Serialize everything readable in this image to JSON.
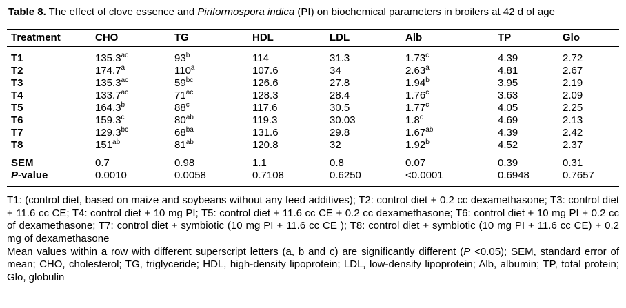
{
  "title": {
    "label": "Table 8.",
    "text_before_italic": " The effect of clove essence and ",
    "italic": "Piriformospora indica",
    "text_after_italic": " (PI) on biochemical parameters in broilers at 42 d of age"
  },
  "table": {
    "columns": [
      "Treatment",
      "CHO",
      "TG",
      "HDL",
      "LDL",
      "Alb",
      "TP",
      "Glo"
    ],
    "rows": [
      {
        "label": "T1",
        "cells": [
          "135.3^ac",
          "93^b",
          "114",
          "31.3",
          "1.73^c",
          "4.39",
          "2.72"
        ]
      },
      {
        "label": "T2",
        "cells": [
          "174.7^a",
          "110^a",
          "107.6",
          "34",
          "2.63^a",
          "4.81",
          "2.67"
        ]
      },
      {
        "label": "T3",
        "cells": [
          "135.3^ac",
          "59^bc",
          "126.6",
          "27.8",
          "1.94^b",
          "3.95",
          "2.19"
        ]
      },
      {
        "label": "T4",
        "cells": [
          "133.7^ac",
          "71^ac",
          "128.3",
          "28.4",
          "1.76^c",
          "3.63",
          "2.09"
        ]
      },
      {
        "label": "T5",
        "cells": [
          "164.3^b",
          "88^c",
          "117.6",
          "30.5",
          "1.77^c",
          "4.05",
          "2.25"
        ]
      },
      {
        "label": "T6",
        "cells": [
          "159.3^c",
          "80^ab",
          "119.3",
          "30.03",
          "1.8^c",
          "4.69",
          "2.13"
        ]
      },
      {
        "label": "T7",
        "cells": [
          "129.3^bc",
          "68^ba",
          "131.6",
          "29.8",
          "1.67^ab",
          "4.39",
          "2.42"
        ]
      },
      {
        "label": "T8",
        "cells": [
          "151^ab",
          "81^ab",
          "120.8",
          "32",
          "1.92^b",
          "4.52",
          "2.37"
        ]
      }
    ],
    "summary_rows": [
      {
        "label": "SEM",
        "italic_label": false,
        "cells": [
          "0.7",
          "0.98",
          "1.1",
          "0.8",
          "0.07",
          "0.39",
          "0.31"
        ]
      },
      {
        "label": "P-value",
        "italic_label": true,
        "cells": [
          "0.0010",
          "0.0058",
          "0.7108",
          "0.6250",
          "<0.0001",
          "0.6948",
          "0.7657"
        ]
      }
    ]
  },
  "footnotes": {
    "para1": "T1: (control diet, based on maize and soybeans without any feed additives); T2: control diet + 0.2 cc dexamethasone; T3: control diet + 11.6 cc CE; T4: control diet + 10 mg PI; T5: control diet + 11.6 cc CE + 0.2 cc dexamethasone; T6: control diet + 10 mg PI + 0.2 cc of dexamethasone; T7: control diet + symbiotic (10 mg PI + 11.6 cc CE ); T8: control diet + symbiotic (10 mg PI + 11.6 cc CE) + 0.2 mg of dexamethasone",
    "para2_before_italic": "Mean values within a row with different superscript letters (a, b and c) are significantly different (",
    "para2_italic": "P",
    "para2_after_italic": " <0.05); SEM, standard error of mean; CHO, cholesterol; TG, triglyceride; HDL, high-density lipoprotein; LDL, low-density lipoprotein; Alb, albumin; TP, total protein; Glo, globulin"
  }
}
